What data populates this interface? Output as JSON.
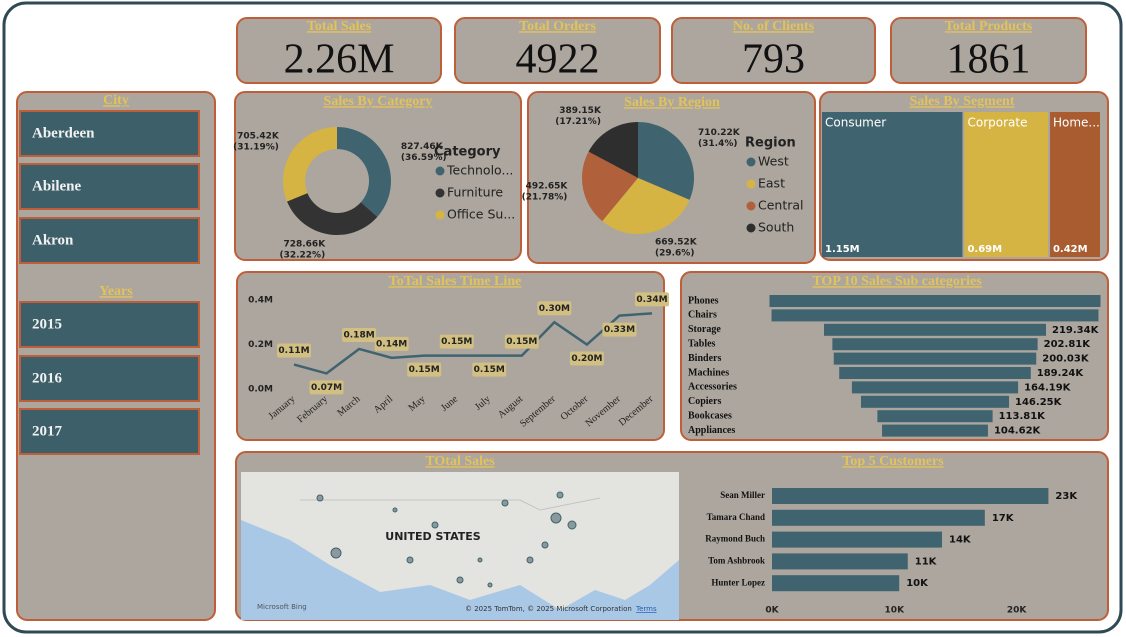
{
  "kpis": [
    {
      "title": "Total Sales",
      "value": "2.26M"
    },
    {
      "title": "Total Orders",
      "value": "4922"
    },
    {
      "title": "No. of Clients",
      "value": "793"
    },
    {
      "title": "Total Products",
      "value": "1861"
    }
  ],
  "slicers": [
    {
      "title": "City",
      "items": [
        "Aberdeen",
        "Abilene",
        "Akron"
      ]
    },
    {
      "title": "Years",
      "items": [
        "2015",
        "2016",
        "2017"
      ]
    }
  ],
  "map": {
    "title": "TOtal Sales",
    "country_label": "UNITED STATES",
    "logo": "Microsoft Bing",
    "attribution": "© 2025 TomTom, © 2025 Microsoft Corporation",
    "terms": "Terms"
  },
  "chart_data": [
    {
      "type": "donut",
      "title": "Sales By Category",
      "legend_title": "Category",
      "categories": [
        "Technolo...",
        "Furniture",
        "Office Su..."
      ],
      "values": [
        827460,
        728660,
        705420
      ],
      "value_labels": [
        "827.46K",
        "728.66K",
        "705.42K"
      ],
      "percent_labels": [
        "(36.59%)",
        "(32.22%)",
        "(31.19%)"
      ],
      "colors": [
        "#3f6470",
        "#333333",
        "#d6b443"
      ]
    },
    {
      "type": "pie",
      "title": "Sales By Region",
      "legend_title": "Region",
      "categories": [
        "West",
        "East",
        "Central",
        "South"
      ],
      "values": [
        710220,
        669520,
        492650,
        389150
      ],
      "value_labels": [
        "710.22K",
        "669.52K",
        "492.65K",
        "389.15K"
      ],
      "percent_labels": [
        "(31.4%)",
        "(29.6%)",
        "(21.78%)",
        "(17.21%)"
      ],
      "colors": [
        "#3f6470",
        "#d6b443",
        "#b0603a",
        "#2e2e2e"
      ]
    },
    {
      "type": "treemap",
      "title": "Sales By Segment",
      "categories": [
        "Consumer",
        "Corporate",
        "Home..."
      ],
      "values": [
        1150000,
        690000,
        420000
      ],
      "value_labels": [
        "1.15M",
        "0.69M",
        "0.42M"
      ],
      "colors": [
        "#3f6470",
        "#d6b443",
        "#a85c30"
      ]
    },
    {
      "type": "line",
      "title": "ToTal Sales Time Line",
      "categories": [
        "January",
        "February",
        "March",
        "April",
        "May",
        "June",
        "July",
        "August",
        "September",
        "October",
        "November",
        "December"
      ],
      "values": [
        0.11,
        0.07,
        0.18,
        0.14,
        0.15,
        0.15,
        0.15,
        0.15,
        0.3,
        0.2,
        0.33,
        0.34
      ],
      "value_labels": [
        "0.11M",
        "0.07M",
        "0.18M",
        "0.14M",
        "0.15M",
        "0.15M",
        "0.15M",
        "0.15M",
        "0.30M",
        "0.20M",
        "0.33M",
        "0.34M"
      ],
      "ylim": [
        0,
        0.4
      ],
      "yticks": [
        {
          "value": 0,
          "label": "0.0M"
        },
        {
          "value": 0.2,
          "label": "0.2M"
        },
        {
          "value": 0.4,
          "label": "0.4M"
        }
      ],
      "color": "#3f6470"
    },
    {
      "type": "funnel",
      "title": "TOP 10 Sales Sub categories",
      "categories": [
        "Phones",
        "Chairs",
        "Storage",
        "Tables",
        "Binders",
        "Machines",
        "Accessories",
        "Copiers",
        "Bookcases",
        "Appliances"
      ],
      "values": [
        327000,
        323000,
        219340,
        202810,
        200030,
        189240,
        164190,
        146250,
        113810,
        104620
      ],
      "value_labels": [
        null,
        null,
        "219.34K",
        "202.81K",
        "200.03K",
        "189.24K",
        "164.19K",
        "146.25K",
        "113.81K",
        "104.62K"
      ],
      "color": "#3f6470"
    },
    {
      "type": "bar",
      "title": "Top 5 Customers",
      "categories": [
        "Sean Miller",
        "Tamara Chand",
        "Raymond Buch",
        "Tom Ashbrook",
        "Hunter Lopez"
      ],
      "values": [
        22600,
        17400,
        13900,
        11100,
        10400
      ],
      "value_labels": [
        "23K",
        "17K",
        "14K",
        "11K",
        "10K"
      ],
      "xlim": [
        0,
        26000
      ],
      "xticks": [
        {
          "value": 0,
          "label": "0K"
        },
        {
          "value": 10000,
          "label": "10K"
        },
        {
          "value": 20000,
          "label": "20K"
        }
      ],
      "color": "#3f6470"
    }
  ]
}
